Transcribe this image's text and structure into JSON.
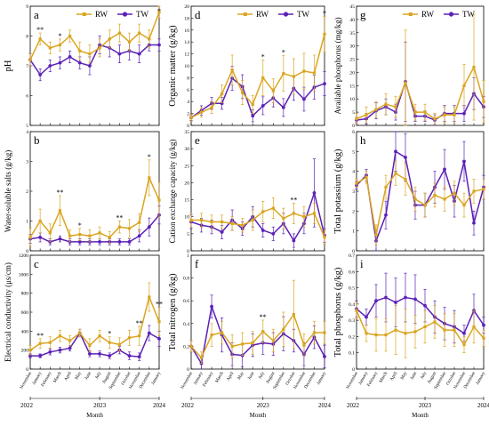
{
  "colors": {
    "RW": "#DAA520",
    "TW": "#5B21B6"
  },
  "months": [
    "November",
    "January",
    "February",
    "March",
    "April",
    "May",
    "June",
    "July",
    "August",
    "September",
    "October",
    "November",
    "December",
    "January"
  ],
  "years": [
    "2022",
    "2023",
    "2024"
  ],
  "xlabel": "Month",
  "chart_data": [
    {
      "id": "a",
      "type": "line",
      "letter": "a",
      "ylabel": "pH",
      "ylim": [
        5,
        9
      ],
      "yticks": [
        5,
        6,
        7,
        8,
        9
      ],
      "legend": [
        "RW",
        "TW"
      ],
      "legend_position": "top",
      "series": [
        {
          "name": "RW",
          "values": [
            7.2,
            7.9,
            7.6,
            7.7,
            8.0,
            7.5,
            7.4,
            7.6,
            7.9,
            8.1,
            7.8,
            8.1,
            7.9,
            8.8
          ],
          "errors": [
            0.2,
            0.2,
            0.2,
            0.2,
            0.2,
            0.3,
            0.3,
            0.3,
            0.3,
            0.3,
            0.3,
            0.3,
            0.3,
            0.2
          ]
        },
        {
          "name": "TW",
          "values": [
            7.2,
            6.7,
            7.0,
            7.1,
            7.3,
            7.1,
            7.0,
            7.7,
            7.6,
            7.4,
            7.5,
            7.4,
            7.7,
            7.7
          ],
          "errors": [
            0.2,
            0.2,
            0.2,
            0.2,
            0.2,
            0.2,
            0.3,
            0.3,
            0.3,
            0.3,
            0.3,
            0.3,
            0.2,
            0.2
          ]
        }
      ],
      "stars": [
        [
          1,
          "**"
        ],
        [
          3,
          "*"
        ],
        [
          13,
          "*"
        ]
      ],
      "xlabels_shown": false
    },
    {
      "id": "b",
      "type": "line",
      "letter": "b",
      "ylabel": "Water-soluble salts (g/kg)",
      "ylim": [
        0,
        4
      ],
      "yticks": [
        0,
        1,
        2,
        3,
        4
      ],
      "series": [
        {
          "name": "RW",
          "values": [
            0.45,
            1.0,
            0.6,
            1.35,
            0.5,
            0.55,
            0.5,
            0.6,
            0.45,
            0.8,
            0.75,
            0.95,
            2.45,
            1.7
          ],
          "errors": [
            0.3,
            0.4,
            0.3,
            0.5,
            0.2,
            0.2,
            0.2,
            0.2,
            0.2,
            0.2,
            0.3,
            0.3,
            0.6,
            0.6
          ]
        },
        {
          "name": "TW",
          "values": [
            0.4,
            0.45,
            0.3,
            0.4,
            0.3,
            0.3,
            0.3,
            0.3,
            0.3,
            0.3,
            0.3,
            0.5,
            0.8,
            1.2
          ],
          "errors": [
            0.15,
            0.15,
            0.1,
            0.1,
            0.1,
            0.1,
            0.1,
            0.1,
            0.1,
            0.1,
            0.1,
            0.2,
            0.3,
            0.3
          ]
        }
      ],
      "stars": [
        [
          3,
          "**"
        ],
        [
          5,
          "*"
        ],
        [
          9,
          "**"
        ],
        [
          12,
          "*"
        ]
      ],
      "xlabels_shown": false
    },
    {
      "id": "c",
      "type": "line",
      "letter": "c",
      "ylabel": "Electrical conductivity (μs/cm)",
      "ylim": [
        0,
        1200
      ],
      "yticks": [
        0,
        200,
        400,
        600,
        800,
        1000,
        1200
      ],
      "series": [
        {
          "name": "RW",
          "values": [
            200,
            270,
            280,
            350,
            300,
            380,
            250,
            350,
            280,
            260,
            330,
            350,
            760,
            500
          ],
          "errors": [
            50,
            50,
            60,
            60,
            50,
            40,
            70,
            60,
            60,
            70,
            80,
            100,
            150,
            150
          ]
        },
        {
          "name": "TW",
          "values": [
            140,
            140,
            180,
            200,
            220,
            380,
            160,
            160,
            140,
            200,
            140,
            130,
            380,
            320
          ],
          "errors": [
            20,
            20,
            30,
            30,
            30,
            40,
            30,
            30,
            30,
            40,
            40,
            40,
            80,
            80
          ]
        }
      ],
      "stars": [
        [
          1,
          "**"
        ],
        [
          8,
          "*"
        ],
        [
          11,
          "**"
        ],
        [
          13,
          "**"
        ]
      ],
      "xlabels_shown": true
    },
    {
      "id": "d",
      "type": "line",
      "letter": "d",
      "ylabel": "Organic matter (g/kg)",
      "ylim": [
        0,
        20
      ],
      "yticks": [
        0,
        2,
        4,
        6,
        8,
        10,
        12,
        14,
        16,
        18,
        20
      ],
      "legend": [
        "RW",
        "TW"
      ],
      "legend_position": "top",
      "series": [
        {
          "name": "RW",
          "values": [
            1.3,
            2.2,
            3.0,
            5.3,
            9.3,
            5.5,
            3.5,
            8.0,
            5.8,
            8.7,
            8.2,
            9.1,
            8.8,
            15.3
          ],
          "errors": [
            0.6,
            0.8,
            1.0,
            1.5,
            2.5,
            2.0,
            1.5,
            3.0,
            2.0,
            3.0,
            3.0,
            3.0,
            3.0,
            3.0
          ]
        },
        {
          "name": "TW",
          "values": [
            1.3,
            2.5,
            3.7,
            3.7,
            7.9,
            6.5,
            1.6,
            3.3,
            4.6,
            3.0,
            6.2,
            4.4,
            6.4,
            7.0
          ],
          "errors": [
            0.5,
            0.8,
            1.0,
            1.0,
            2.0,
            2.0,
            1.0,
            1.5,
            1.5,
            1.5,
            2.0,
            2.0,
            2.0,
            2.0
          ]
        }
      ],
      "stars": [
        [
          7,
          "*"
        ],
        [
          9,
          "*"
        ],
        [
          13,
          "*"
        ]
      ],
      "xlabels_shown": false
    },
    {
      "id": "e",
      "type": "line",
      "letter": "e",
      "ylabel": "Cation exchange capacity (g/kg)",
      "ylim": [
        0,
        35
      ],
      "yticks": [
        0,
        5,
        10,
        15,
        20,
        25,
        30,
        35
      ],
      "series": [
        {
          "name": "RW",
          "values": [
            9.0,
            9.0,
            8.5,
            8.5,
            8.0,
            7.5,
            9.0,
            11.5,
            12.5,
            9.5,
            11.0,
            10.0,
            11.0,
            4.0
          ],
          "errors": [
            2,
            2,
            2,
            2,
            2,
            2,
            3,
            3,
            3,
            3,
            3,
            3,
            3,
            2
          ]
        },
        {
          "name": "TW",
          "values": [
            8.5,
            7.5,
            7.0,
            5.5,
            9.0,
            6.5,
            10.0,
            6.0,
            5.0,
            8.0,
            3.0,
            8.0,
            17.0,
            4.5
          ],
          "errors": [
            2,
            2,
            2,
            2,
            3,
            2,
            3,
            2,
            2,
            3,
            2,
            3,
            10,
            2
          ]
        }
      ],
      "stars": [
        [
          10,
          "**"
        ]
      ],
      "xlabels_shown": false
    },
    {
      "id": "f",
      "type": "line",
      "letter": "f",
      "ylabel": "Total nitrogen (g/kg)",
      "ylim": [
        0,
        1
      ],
      "yticks": [
        0,
        0.2,
        0.4,
        0.6,
        0.8,
        1
      ],
      "series": [
        {
          "name": "RW",
          "values": [
            0.2,
            0.1,
            0.3,
            0.32,
            0.2,
            0.22,
            0.23,
            0.33,
            0.25,
            0.35,
            0.48,
            0.21,
            0.32,
            0.32
          ],
          "errors": [
            0.05,
            0.05,
            0.1,
            0.1,
            0.1,
            0.1,
            0.1,
            0.1,
            0.1,
            0.15,
            0.3,
            0.1,
            0.1,
            0.1
          ]
        },
        {
          "name": "TW",
          "values": [
            0.2,
            0.05,
            0.55,
            0.3,
            0.13,
            0.12,
            0.21,
            0.23,
            0.22,
            0.31,
            0.25,
            0.13,
            0.28,
            0.11
          ],
          "errors": [
            0.05,
            0.05,
            0.1,
            0.15,
            0.1,
            0.1,
            0.1,
            0.1,
            0.1,
            0.15,
            0.1,
            0.1,
            0.1,
            0.1
          ]
        }
      ],
      "stars": [
        [
          7,
          "**"
        ]
      ],
      "xlabels_shown": true
    },
    {
      "id": "g",
      "type": "line",
      "letter": "g",
      "ylabel": "Available phosphorus (mg/kg)",
      "ylim": [
        0,
        45
      ],
      "yticks": [
        0,
        5,
        10,
        15,
        20,
        25,
        30,
        35,
        40,
        45
      ],
      "legend": [
        "RW",
        "TW"
      ],
      "legend_position": "top",
      "series": [
        {
          "name": "RW",
          "values": [
            2.5,
            4.0,
            6.0,
            8.0,
            7.0,
            16.0,
            5.0,
            5.0,
            2.5,
            4.0,
            4.0,
            15.0,
            22.0,
            9.0
          ],
          "errors": [
            2,
            3,
            3,
            4,
            4,
            20,
            3,
            3,
            2,
            3,
            3,
            8,
            20,
            8
          ]
        },
        {
          "name": "TW",
          "values": [
            2.0,
            2.5,
            5.5,
            7.0,
            5.0,
            16.5,
            3.5,
            3.5,
            2.0,
            4.5,
            4.5,
            4.5,
            12.0,
            7.0
          ],
          "errors": [
            1,
            2,
            3,
            3,
            3,
            15,
            2,
            2,
            2,
            3,
            3,
            3,
            6,
            4
          ]
        }
      ],
      "stars": [],
      "xlabels_shown": false
    },
    {
      "id": "h",
      "type": "line",
      "letter": "h",
      "ylabel": "Total potassium (g/kg)",
      "ylim": [
        0,
        6
      ],
      "yticks": [
        0,
        1,
        2,
        3,
        4,
        5,
        6
      ],
      "series": [
        {
          "name": "RW",
          "values": [
            3.4,
            3.7,
            0.8,
            3.2,
            3.9,
            3.6,
            2.6,
            2.3,
            2.8,
            2.6,
            2.9,
            2.3,
            3.0,
            3.1
          ],
          "errors": [
            0.2,
            0.3,
            0.5,
            0.6,
            0.6,
            0.8,
            0.6,
            0.6,
            0.6,
            0.6,
            0.6,
            0.6,
            0.6,
            0.5
          ]
        },
        {
          "name": "TW",
          "values": [
            3.3,
            3.8,
            0.5,
            1.8,
            5.0,
            4.7,
            2.3,
            2.3,
            3.2,
            4.1,
            2.5,
            4.5,
            1.4,
            3.2
          ],
          "errors": [
            0.2,
            0.3,
            0.5,
            0.7,
            1.0,
            1.2,
            0.7,
            0.6,
            0.8,
            1.0,
            0.8,
            1.0,
            0.6,
            0.6
          ]
        }
      ],
      "stars": [],
      "xlabels_shown": false
    },
    {
      "id": "i",
      "type": "line",
      "letter": "i",
      "ylabel": "Total phosphorus (g/kg)",
      "ylim": [
        0,
        0.7
      ],
      "yticks": [
        0,
        0.1,
        0.2,
        0.3,
        0.4,
        0.5,
        0.6,
        0.7
      ],
      "series": [
        {
          "name": "RW",
          "values": [
            0.36,
            0.22,
            0.21,
            0.21,
            0.24,
            0.22,
            0.23,
            0.26,
            0.29,
            0.24,
            0.24,
            0.15,
            0.26,
            0.19
          ],
          "errors": [
            0.05,
            0.05,
            0.1,
            0.1,
            0.15,
            0.15,
            0.1,
            0.1,
            0.1,
            0.1,
            0.1,
            0.05,
            0.1,
            0.05
          ]
        },
        {
          "name": "TW",
          "values": [
            0.37,
            0.32,
            0.42,
            0.44,
            0.41,
            0.44,
            0.43,
            0.39,
            0.32,
            0.28,
            0.26,
            0.22,
            0.36,
            0.27
          ],
          "errors": [
            0.05,
            0.05,
            0.1,
            0.15,
            0.15,
            0.15,
            0.15,
            0.1,
            0.1,
            0.1,
            0.1,
            0.05,
            0.1,
            0.05
          ]
        }
      ],
      "stars": [],
      "xlabels_shown": true
    }
  ]
}
